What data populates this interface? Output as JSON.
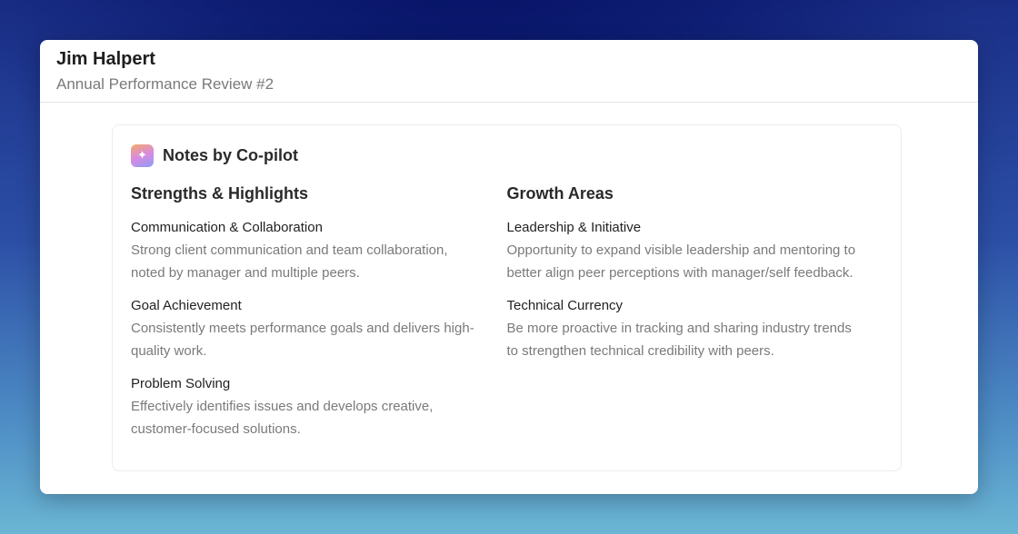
{
  "header": {
    "name": "Jim Halpert",
    "subtitle": "Annual Performance Review #2"
  },
  "notes": {
    "icon": "sparkles-icon",
    "title": "Notes by Co-pilot",
    "strengths": {
      "heading": "Strengths & Highlights",
      "items": [
        {
          "title": "Communication & Collaboration",
          "desc": "Strong client communication and team collaboration, noted by manager and multiple peers."
        },
        {
          "title": "Goal Achievement",
          "desc": "Consistently meets performance goals and delivers high-quality work."
        },
        {
          "title": "Problem Solving",
          "desc": "Effectively identifies issues and develops creative, customer-focused solutions."
        }
      ]
    },
    "growth": {
      "heading": "Growth Areas",
      "items": [
        {
          "title": "Leadership & Initiative",
          "desc": "Opportunity to expand visible leadership and mentoring to better align peer perceptions with manager/self feedback."
        },
        {
          "title": "Technical Currency",
          "desc": "Be more proactive in tracking and sharing industry trends to strengthen technical credibility with peers."
        }
      ]
    }
  }
}
